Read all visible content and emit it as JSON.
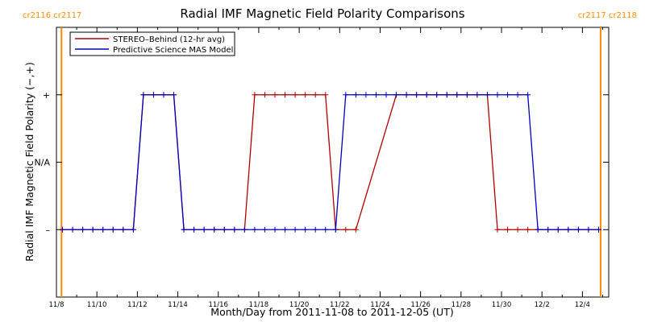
{
  "chart_data": {
    "type": "line",
    "title": "Radial IMF Magnetic Field Polarity Comparisons",
    "xlabel": "Month/Day from 2011-11-08 to 2011-12-05 (UT)",
    "ylabel": "Radial IMF Magnetic Field Polarity (−,+)",
    "x_ticks": [
      {
        "day": 0,
        "label": "11/8"
      },
      {
        "day": 2,
        "label": "11/10"
      },
      {
        "day": 4,
        "label": "11/12"
      },
      {
        "day": 6,
        "label": "11/14"
      },
      {
        "day": 8,
        "label": "11/16"
      },
      {
        "day": 10,
        "label": "11/18"
      },
      {
        "day": 12,
        "label": "11/20"
      },
      {
        "day": 14,
        "label": "11/22"
      },
      {
        "day": 16,
        "label": "11/24"
      },
      {
        "day": 18,
        "label": "11/26"
      },
      {
        "day": 20,
        "label": "11/28"
      },
      {
        "day": 22,
        "label": "11/30"
      },
      {
        "day": 24,
        "label": "12/2"
      },
      {
        "day": 26,
        "label": "12/4"
      }
    ],
    "y_ticks": [
      {
        "value": 1,
        "label": "+"
      },
      {
        "value": 0,
        "label": "N/A"
      },
      {
        "value": -1,
        "label": "–"
      }
    ],
    "xlim": [
      0,
      27.3
    ],
    "ylim": [
      -2,
      2
    ],
    "carrington_markers": [
      {
        "day": 0.25,
        "label": "cr2116 cr2117"
      },
      {
        "day": 26.9,
        "label": "cr2117 cr2118"
      }
    ],
    "legend_position": "top-left",
    "series": [
      {
        "name": "STEREO–Behind (12-hr avg)",
        "color": "#b00000",
        "marker": "plus",
        "points": [
          [
            0.3,
            -1
          ],
          [
            0.8,
            -1
          ],
          [
            1.3,
            -1
          ],
          [
            1.8,
            -1
          ],
          [
            2.3,
            -1
          ],
          [
            2.8,
            -1
          ],
          [
            3.3,
            -1
          ],
          [
            3.8,
            -1
          ],
          [
            4.3,
            1
          ],
          [
            4.8,
            1
          ],
          [
            5.3,
            1
          ],
          [
            5.8,
            1
          ],
          [
            6.3,
            -1
          ],
          [
            6.8,
            -1
          ],
          [
            7.3,
            -1
          ],
          [
            7.8,
            -1
          ],
          [
            8.3,
            -1
          ],
          [
            8.8,
            -1
          ],
          [
            9.3,
            -1
          ],
          [
            9.8,
            1
          ],
          [
            10.3,
            1
          ],
          [
            10.8,
            1
          ],
          [
            11.3,
            1
          ],
          [
            11.8,
            1
          ],
          [
            12.3,
            1
          ],
          [
            12.8,
            1
          ],
          [
            13.3,
            1
          ],
          [
            13.8,
            -1
          ],
          [
            14.3,
            -1
          ],
          [
            14.8,
            -1
          ],
          [
            16.8,
            1
          ],
          [
            17.3,
            1
          ],
          [
            17.8,
            1
          ],
          [
            18.3,
            1
          ],
          [
            18.8,
            1
          ],
          [
            19.3,
            1
          ],
          [
            19.8,
            1
          ],
          [
            20.3,
            1
          ],
          [
            20.8,
            1
          ],
          [
            21.3,
            1
          ],
          [
            21.8,
            -1
          ],
          [
            22.3,
            -1
          ],
          [
            22.8,
            -1
          ],
          [
            23.3,
            -1
          ],
          [
            23.8,
            -1
          ],
          [
            24.3,
            -1
          ],
          [
            24.8,
            -1
          ],
          [
            25.3,
            -1
          ],
          [
            25.8,
            -1
          ],
          [
            26.3,
            -1
          ],
          [
            26.8,
            -1
          ]
        ]
      },
      {
        "name": "Predictive Science MAS Model",
        "color": "#0000c0",
        "marker": "plus",
        "points": [
          [
            0.3,
            -1
          ],
          [
            0.8,
            -1
          ],
          [
            1.3,
            -1
          ],
          [
            1.8,
            -1
          ],
          [
            2.3,
            -1
          ],
          [
            2.8,
            -1
          ],
          [
            3.3,
            -1
          ],
          [
            3.8,
            -1
          ],
          [
            4.3,
            1
          ],
          [
            4.8,
            1
          ],
          [
            5.3,
            1
          ],
          [
            5.8,
            1
          ],
          [
            6.3,
            -1
          ],
          [
            6.8,
            -1
          ],
          [
            7.3,
            -1
          ],
          [
            7.8,
            -1
          ],
          [
            8.3,
            -1
          ],
          [
            8.8,
            -1
          ],
          [
            9.3,
            -1
          ],
          [
            9.8,
            -1
          ],
          [
            10.3,
            -1
          ],
          [
            10.8,
            -1
          ],
          [
            11.3,
            -1
          ],
          [
            11.8,
            -1
          ],
          [
            12.3,
            -1
          ],
          [
            12.8,
            -1
          ],
          [
            13.3,
            -1
          ],
          [
            13.8,
            -1
          ],
          [
            14.3,
            1
          ],
          [
            14.8,
            1
          ],
          [
            15.3,
            1
          ],
          [
            15.8,
            1
          ],
          [
            16.3,
            1
          ],
          [
            16.8,
            1
          ],
          [
            17.3,
            1
          ],
          [
            17.8,
            1
          ],
          [
            18.3,
            1
          ],
          [
            18.8,
            1
          ],
          [
            19.3,
            1
          ],
          [
            19.8,
            1
          ],
          [
            20.3,
            1
          ],
          [
            20.8,
            1
          ],
          [
            21.3,
            1
          ],
          [
            21.8,
            1
          ],
          [
            22.3,
            1
          ],
          [
            22.8,
            1
          ],
          [
            23.3,
            1
          ],
          [
            23.8,
            -1
          ],
          [
            24.3,
            -1
          ],
          [
            24.8,
            -1
          ],
          [
            25.3,
            -1
          ],
          [
            25.8,
            -1
          ],
          [
            26.3,
            -1
          ],
          [
            26.8,
            -1
          ]
        ]
      }
    ]
  }
}
